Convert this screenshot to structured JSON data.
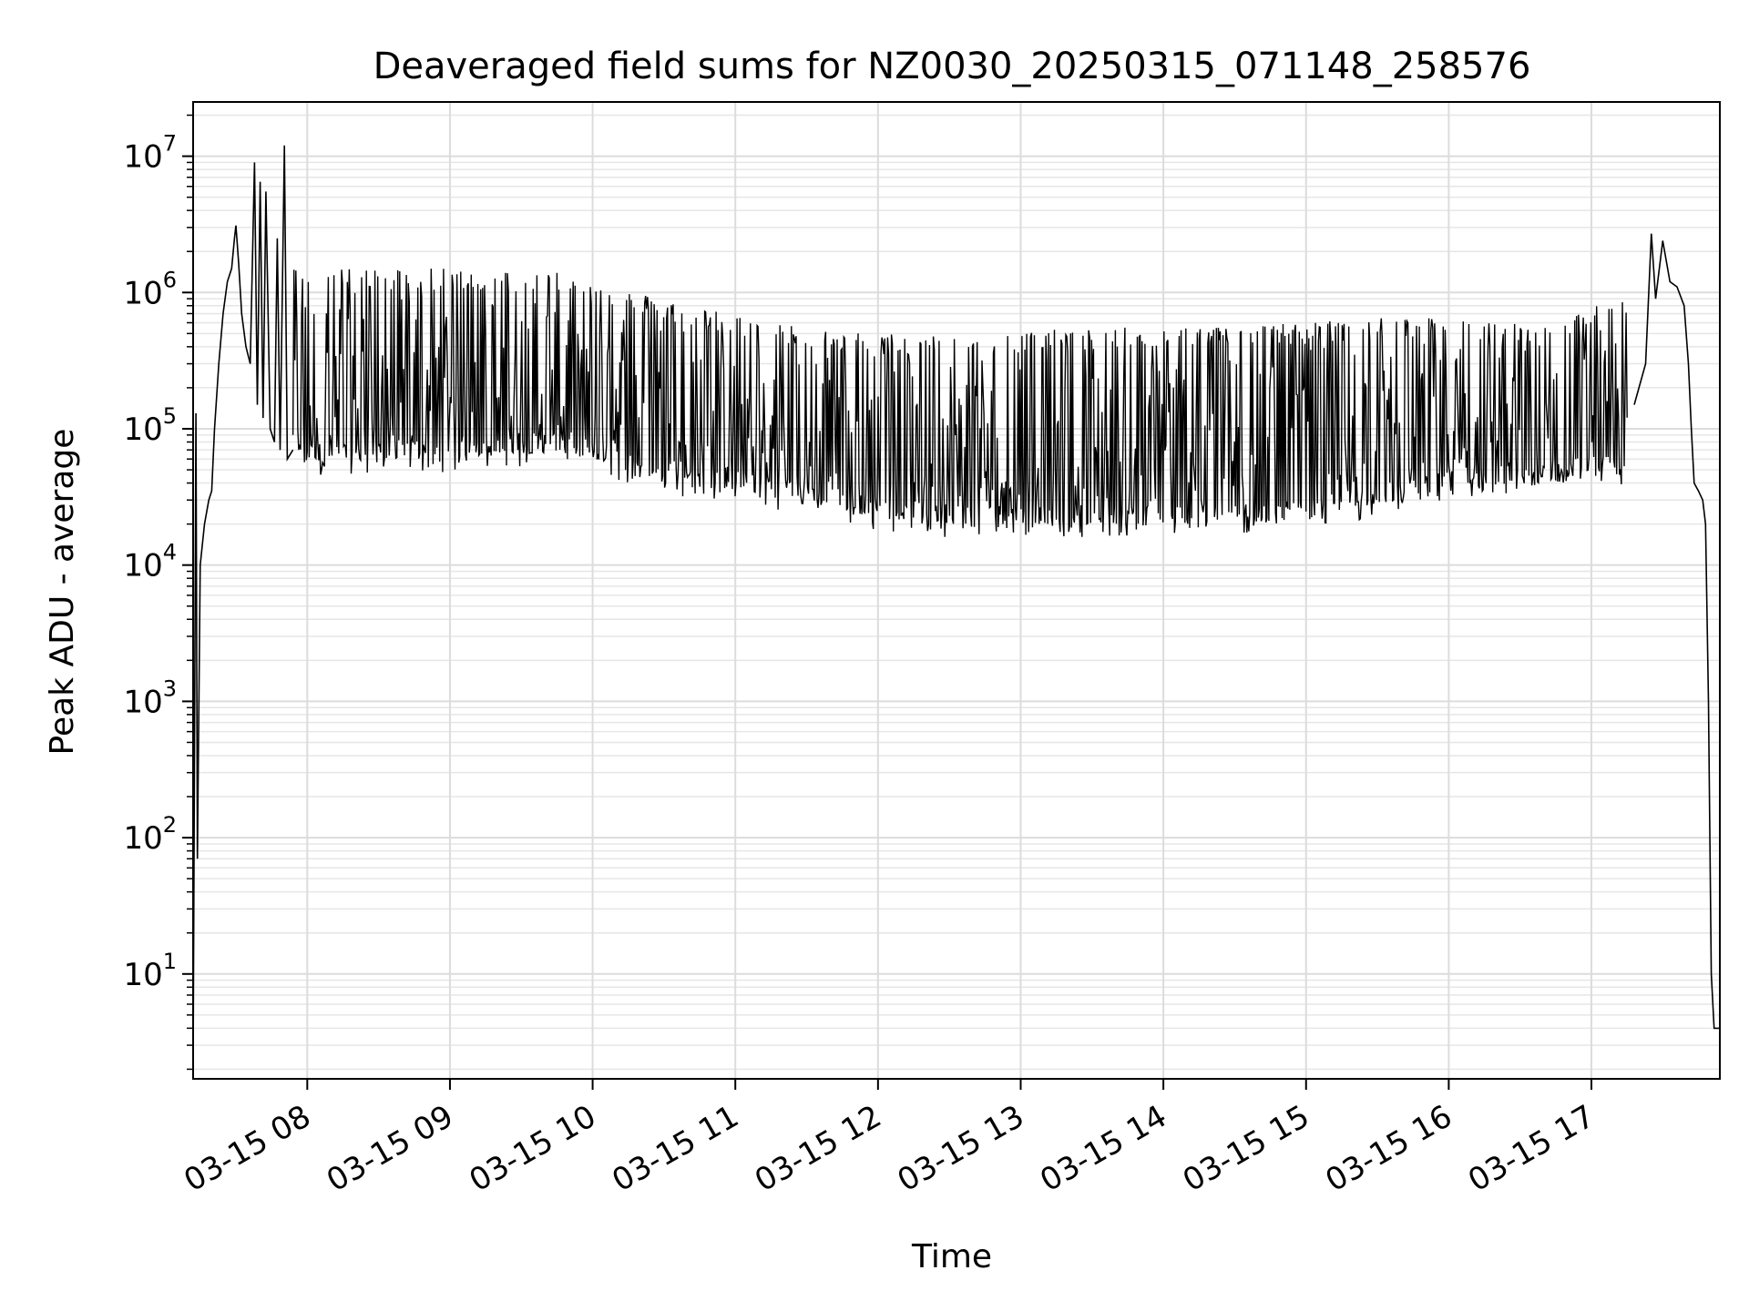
{
  "chart_data": {
    "type": "line",
    "title": "Deaveraged field sums for NZ0030_20250315_071148_258576",
    "xlabel": "Time",
    "ylabel": "Peak ADU - average",
    "y_scale": "log",
    "grid": true,
    "grid_minor": true,
    "line_color": "#000000",
    "x_tick_labels": [
      "03-15 08",
      "03-15 09",
      "03-15 10",
      "03-15 11",
      "03-15 12",
      "03-15 13",
      "03-15 14",
      "03-15 15",
      "03-15 16",
      "03-15 17"
    ],
    "x_tick_hours": [
      8,
      9,
      10,
      11,
      12,
      13,
      14,
      15,
      16,
      17
    ],
    "xlim_hours": [
      7.2,
      17.9
    ],
    "y_tick_values": [
      10,
      100,
      1000,
      10000,
      100000,
      1000000,
      10000000
    ],
    "y_tick_labels": [
      {
        "base": "10",
        "exp": "1"
      },
      {
        "base": "10",
        "exp": "2"
      },
      {
        "base": "10",
        "exp": "3"
      },
      {
        "base": "10",
        "exp": "4"
      },
      {
        "base": "10",
        "exp": "5"
      },
      {
        "base": "10",
        "exp": "6"
      },
      {
        "base": "10",
        "exp": "7"
      }
    ],
    "ylim": [
      1.7,
      25000000
    ],
    "series": [
      {
        "points": [
          [
            7.2,
            2
          ],
          [
            7.22,
            130000
          ],
          [
            7.23,
            70
          ],
          [
            7.25,
            10000
          ],
          [
            7.28,
            20000
          ],
          [
            7.31,
            30000
          ],
          [
            7.33,
            35000
          ],
          [
            7.35,
            100000
          ],
          [
            7.38,
            300000
          ],
          [
            7.41,
            700000
          ],
          [
            7.44,
            1200000
          ],
          [
            7.47,
            1500000
          ],
          [
            7.49,
            2500000
          ],
          [
            7.5,
            3100000
          ],
          [
            7.52,
            1600000
          ],
          [
            7.54,
            700000
          ],
          [
            7.57,
            400000
          ],
          [
            7.6,
            300000
          ],
          [
            7.63,
            9000000
          ],
          [
            7.65,
            150000
          ],
          [
            7.67,
            6500000
          ],
          [
            7.69,
            120000
          ],
          [
            7.71,
            5500000
          ],
          [
            7.74,
            100000
          ],
          [
            7.77,
            80000
          ],
          [
            7.79,
            2500000
          ],
          [
            7.81,
            70000
          ],
          [
            7.84,
            12000000
          ],
          [
            7.86,
            60000
          ],
          [
            7.9,
            70000
          ],
          [
            7.95,
            60000
          ],
          [
            8.0,
            80000
          ],
          [
            8.1,
            70000
          ],
          [
            8.2,
            75000
          ],
          [
            8.3,
            70000
          ],
          [
            8.5,
            72000
          ],
          [
            8.7,
            75000
          ],
          [
            9.0,
            72000
          ],
          [
            9.2,
            75000
          ],
          [
            9.4,
            72000
          ],
          [
            9.6,
            80000
          ],
          [
            9.8,
            90000
          ],
          [
            10.0,
            100000
          ],
          [
            10.2,
            80000
          ],
          [
            10.4,
            70000
          ],
          [
            10.6,
            60000
          ],
          [
            10.8,
            50000
          ],
          [
            11.0,
            45000
          ],
          [
            11.2,
            40000
          ],
          [
            11.5,
            38000
          ],
          [
            11.8,
            35000
          ],
          [
            12.0,
            32000
          ],
          [
            12.3,
            30000
          ],
          [
            12.6,
            28000
          ],
          [
            13.0,
            30000
          ],
          [
            13.5,
            30000
          ],
          [
            14.0,
            30000
          ],
          [
            14.5,
            32000
          ],
          [
            15.0,
            35000
          ],
          [
            15.5,
            45000
          ],
          [
            16.0,
            55000
          ],
          [
            16.5,
            60000
          ],
          [
            16.8,
            65000
          ],
          [
            17.0,
            70000
          ],
          [
            17.2,
            100000
          ],
          [
            17.3,
            150000
          ],
          [
            17.38,
            300000
          ],
          [
            17.42,
            2700000
          ],
          [
            17.45,
            900000
          ],
          [
            17.5,
            2400000
          ],
          [
            17.55,
            1200000
          ],
          [
            17.6,
            1100000
          ],
          [
            17.65,
            800000
          ],
          [
            17.68,
            300000
          ],
          [
            17.7,
            100000
          ],
          [
            17.72,
            40000
          ],
          [
            17.75,
            35000
          ],
          [
            17.78,
            30000
          ],
          [
            17.8,
            20000
          ],
          [
            17.82,
            1000
          ],
          [
            17.84,
            10
          ],
          [
            17.86,
            4
          ],
          [
            17.88,
            4
          ],
          [
            17.9,
            4
          ]
        ],
        "band": {
          "hours": [
            7.9,
            8.5,
            9.0,
            9.5,
            9.8,
            10.0,
            10.5,
            11.0,
            11.5,
            12.0,
            12.5,
            13.0,
            13.5,
            14.0,
            14.5,
            15.0,
            15.5,
            16.0,
            16.5,
            16.8,
            17.0,
            17.25
          ],
          "high": [
            1500000,
            1500000,
            1500000,
            1450000,
            1400000,
            1200000,
            900000,
            700000,
            550000,
            500000,
            500000,
            520000,
            550000,
            560000,
            580000,
            600000,
            650000,
            650000,
            600000,
            600000,
            800000,
            1000000
          ],
          "low": [
            55000,
            60000,
            60000,
            65000,
            70000,
            60000,
            40000,
            35000,
            30000,
            22000,
            20000,
            20000,
            20000,
            20000,
            20000,
            22000,
            28000,
            35000,
            40000,
            40000,
            45000,
            45000
          ]
        }
      }
    ]
  }
}
